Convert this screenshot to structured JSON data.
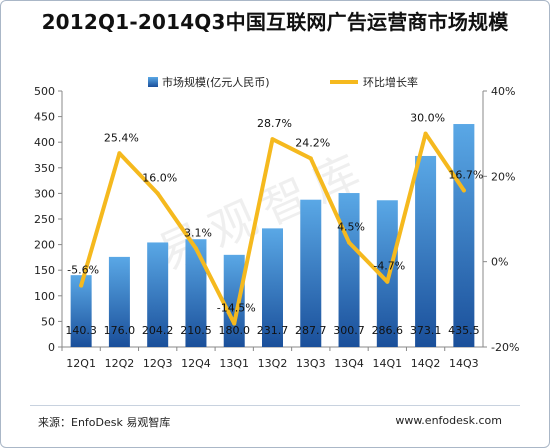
{
  "title": "2012Q1-2014Q3中国互联网广告运营商市场规模",
  "watermark": "易观智库",
  "footer": {
    "source": "来源：EnfoDesk 易观智库",
    "url": "www.enfodesk.com"
  },
  "colors": {
    "bar_top": "#5aa8e6",
    "bar_bottom": "#1a4f9a",
    "line": "#f5b91e"
  },
  "chart_data": {
    "type": "bar",
    "categories": [
      "12Q1",
      "12Q2",
      "12Q3",
      "12Q4",
      "13Q1",
      "13Q2",
      "13Q3",
      "13Q4",
      "14Q1",
      "14Q2",
      "14Q3"
    ],
    "series": [
      {
        "name": "市场规模(亿元人民币)",
        "type": "bar",
        "axis": "left",
        "values": [
          140.3,
          176.0,
          204.2,
          210.5,
          180.0,
          231.7,
          287.7,
          300.7,
          286.6,
          373.1,
          435.5
        ],
        "labels": [
          "140.3",
          "176.0",
          "204.2",
          "210.5",
          "180.0",
          "231.7",
          "287.7",
          "300.7",
          "286.6",
          "373.1",
          "435.5"
        ]
      },
      {
        "name": "环比增长率",
        "type": "line",
        "axis": "right",
        "values": [
          -5.6,
          25.4,
          16.0,
          3.1,
          -14.5,
          28.7,
          24.2,
          4.5,
          -4.7,
          30.0,
          16.7
        ],
        "labels": [
          "-5.6%",
          "25.4%",
          "16.0%",
          "3.1%",
          "-14.5%",
          "28.7%",
          "24.2%",
          "4.5%",
          "-4.7%",
          "30.0%",
          "16.7%"
        ]
      }
    ],
    "y_left": {
      "ylim": [
        0,
        500
      ],
      "ticks": [
        "0",
        "50",
        "100",
        "150",
        "200",
        "250",
        "300",
        "350",
        "400",
        "450",
        "500"
      ]
    },
    "y_right": {
      "ylim": [
        -20,
        40
      ],
      "ticks": [
        "-20%",
        "0%",
        "20%",
        "40%"
      ]
    },
    "grid": false,
    "legend": "top-center"
  }
}
